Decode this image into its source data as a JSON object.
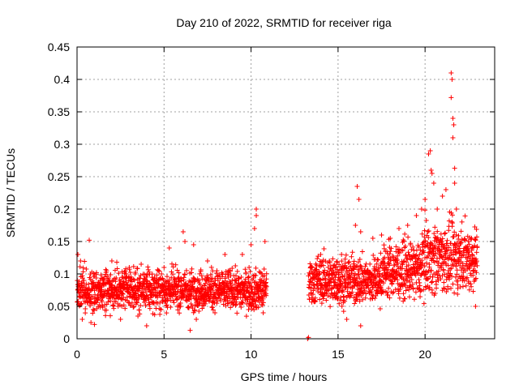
{
  "chart_data": {
    "type": "scatter",
    "title": "Day 210 of 2022, SRMTID for receiver riga",
    "xlabel": "GPS time / hours",
    "ylabel": "SRMTID / TECUs",
    "xlim": [
      0,
      24
    ],
    "ylim": [
      0,
      0.45
    ],
    "xticks": [
      "0",
      "5",
      "10",
      "15",
      "20"
    ],
    "xtick_values": [
      0,
      5,
      10,
      15,
      20
    ],
    "yticks": [
      "0",
      "0.05",
      "0.1",
      "0.15",
      "0.2",
      "0.25",
      "0.3",
      "0.35",
      "0.4",
      "0.45"
    ],
    "ytick_values": [
      0,
      0.05,
      0.1,
      0.15,
      0.2,
      0.25,
      0.3,
      0.35,
      0.4,
      0.45
    ],
    "grid": true,
    "marker": "+",
    "series_color": "#ff0000",
    "series": [
      {
        "name": "SRMTID",
        "description": "Dense scatter of 30-second SRMTID samples; data gap between ~10.9 h and ~13.3 h",
        "segments": [
          {
            "x_range": [
              0.0,
              10.9
            ],
            "typical_range": [
              0.03,
              0.13
            ],
            "center": 0.075
          },
          {
            "x_range": [
              13.3,
              23.0
            ],
            "typical_range": [
              0.04,
              0.16
            ],
            "center": 0.09
          }
        ],
        "points": [
          [
            0.05,
            0.13
          ],
          [
            0.2,
            0.12
          ],
          [
            0.7,
            0.152
          ],
          [
            0.3,
            0.03
          ],
          [
            0.8,
            0.025
          ],
          [
            1.0,
            0.022
          ],
          [
            2.0,
            0.12
          ],
          [
            2.5,
            0.03
          ],
          [
            3.0,
            0.11
          ],
          [
            3.5,
            0.035
          ],
          [
            4.0,
            0.02
          ],
          [
            5.0,
            0.11
          ],
          [
            5.3,
            0.14
          ],
          [
            6.1,
            0.165
          ],
          [
            6.2,
            0.15
          ],
          [
            6.5,
            0.013
          ],
          [
            6.7,
            0.145
          ],
          [
            7.5,
            0.12
          ],
          [
            8.5,
            0.13
          ],
          [
            9.5,
            0.13
          ],
          [
            10.0,
            0.145
          ],
          [
            10.2,
            0.17
          ],
          [
            10.3,
            0.2
          ],
          [
            10.3,
            0.19
          ],
          [
            10.8,
            0.15
          ],
          [
            10.7,
            0.04
          ],
          [
            13.25,
            0.0
          ],
          [
            13.3,
            0.002
          ],
          [
            14.0,
            0.13
          ],
          [
            14.5,
            0.12
          ],
          [
            15.2,
            0.13
          ],
          [
            15.5,
            0.03
          ],
          [
            16.0,
            0.175
          ],
          [
            16.1,
            0.235
          ],
          [
            16.2,
            0.215
          ],
          [
            16.3,
            0.165
          ],
          [
            16.3,
            0.02
          ],
          [
            17.0,
            0.155
          ],
          [
            17.5,
            0.16
          ],
          [
            18.0,
            0.155
          ],
          [
            18.5,
            0.17
          ],
          [
            19.0,
            0.175
          ],
          [
            19.5,
            0.19
          ],
          [
            19.8,
            0.2
          ],
          [
            20.0,
            0.215
          ],
          [
            20.2,
            0.285
          ],
          [
            20.3,
            0.29
          ],
          [
            20.35,
            0.26
          ],
          [
            20.4,
            0.255
          ],
          [
            20.5,
            0.24
          ],
          [
            20.7,
            0.2
          ],
          [
            21.0,
            0.22
          ],
          [
            21.2,
            0.23
          ],
          [
            21.5,
            0.41
          ],
          [
            21.55,
            0.4
          ],
          [
            21.5,
            0.372
          ],
          [
            21.6,
            0.34
          ],
          [
            21.65,
            0.33
          ],
          [
            21.6,
            0.31
          ],
          [
            21.7,
            0.263
          ],
          [
            21.7,
            0.24
          ],
          [
            21.8,
            0.2
          ],
          [
            22.0,
            0.15
          ],
          [
            22.5,
            0.13
          ],
          [
            22.9,
            0.12
          ],
          [
            22.9,
            0.05
          ]
        ]
      }
    ]
  }
}
